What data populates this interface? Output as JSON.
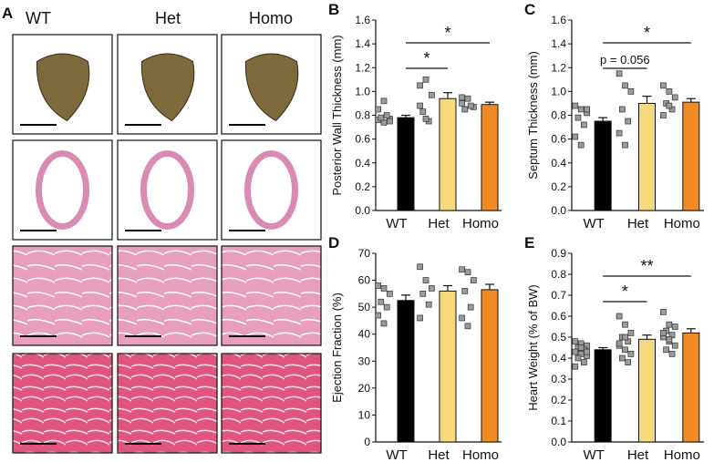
{
  "panel_a": {
    "label": "A",
    "columns": [
      "WT",
      "Het",
      "Homo"
    ]
  },
  "chart_data": [
    {
      "type": "bar",
      "label": "B",
      "ylabel": "Posterior Wall Thickness (mm)",
      "categories": [
        "WT",
        "Het",
        "Homo"
      ],
      "values": [
        0.78,
        0.94,
        0.89
      ],
      "errors": [
        0.02,
        0.05,
        0.02
      ],
      "colors": [
        "#000000",
        "#f5d97a",
        "#f28a24"
      ],
      "points": [
        [
          0.76,
          0.74,
          0.77,
          0.78,
          0.8,
          0.85,
          0.92,
          0.75
        ],
        [
          1.05,
          1.1,
          0.97,
          0.83,
          0.75,
          0.88,
          0.77
        ],
        [
          0.9,
          0.94,
          0.87,
          0.85,
          0.88,
          0.95
        ]
      ],
      "comparisons": [
        {
          "between": [
            0,
            1
          ],
          "label": "*"
        },
        {
          "between": [
            0,
            2
          ],
          "label": "*"
        }
      ],
      "ylim": [
        0,
        1.6
      ],
      "yticks": [
        {
          "value": 0,
          "label": "0.0"
        },
        0.2,
        0.4,
        0.6,
        0.8,
        {
          "value": 1,
          "label": "1.0"
        },
        1.2,
        1.4,
        1.6
      ]
    },
    {
      "type": "bar",
      "label": "C",
      "ylabel": "Septum Thickness (mm)",
      "categories": [
        "WT",
        "Het",
        "Homo"
      ],
      "values": [
        0.75,
        0.9,
        0.91
      ],
      "errors": [
        0.03,
        0.06,
        0.03
      ],
      "colors": [
        "#000000",
        "#f5d97a",
        "#f28a24"
      ],
      "points": [
        [
          0.88,
          0.85,
          0.82,
          0.78,
          0.72,
          0.62,
          0.55,
          0.85
        ],
        [
          1.15,
          1.05,
          1.0,
          0.85,
          0.75,
          0.65,
          0.55
        ],
        [
          1.05,
          1.0,
          0.95,
          0.9,
          0.85,
          0.8,
          0.88
        ]
      ],
      "comparisons": [
        {
          "between": [
            0,
            1
          ],
          "label": "p = 0.056"
        },
        {
          "between": [
            0,
            2
          ],
          "label": "*"
        }
      ],
      "ylim": [
        0,
        1.6
      ],
      "yticks": [
        {
          "value": 0,
          "label": "0.0"
        },
        0.2,
        0.4,
        0.6,
        0.8,
        {
          "value": 1,
          "label": "1.0"
        },
        1.2,
        1.4,
        1.6
      ]
    },
    {
      "type": "bar",
      "label": "D",
      "ylabel": "Ejection Fraction (%)",
      "categories": [
        "WT",
        "Het",
        "Homo"
      ],
      "values": [
        52.5,
        56,
        56.5
      ],
      "errors": [
        2,
        2,
        2
      ],
      "colors": [
        "#000000",
        "#f5d97a",
        "#f28a24"
      ],
      "points": [
        [
          58,
          57,
          55,
          52,
          50,
          47,
          44
        ],
        [
          65,
          60,
          57,
          55,
          51,
          46
        ],
        [
          64,
          63,
          60,
          56,
          50,
          46,
          43
        ]
      ],
      "comparisons": [],
      "ylim": [
        0,
        70
      ],
      "yticks": [
        0,
        10,
        20,
        30,
        40,
        50,
        60,
        70
      ]
    },
    {
      "type": "bar",
      "label": "E",
      "ylabel": "Heart Weight (% of BW)",
      "categories": [
        "WT",
        "Het",
        "Homo"
      ],
      "values": [
        0.44,
        0.49,
        0.52
      ],
      "errors": [
        0.01,
        0.02,
        0.02
      ],
      "colors": [
        "#000000",
        "#f5d97a",
        "#f28a24"
      ],
      "points": [
        [
          0.48,
          0.47,
          0.46,
          0.45,
          0.44,
          0.43,
          0.42,
          0.41,
          0.4,
          0.38,
          0.36,
          0.45,
          0.43
        ],
        [
          0.6,
          0.56,
          0.52,
          0.5,
          0.48,
          0.46,
          0.44,
          0.42,
          0.4,
          0.38,
          0.47,
          0.5
        ],
        [
          0.62,
          0.56,
          0.55,
          0.53,
          0.51,
          0.5,
          0.48,
          0.46,
          0.44,
          0.42,
          0.52,
          0.49
        ]
      ],
      "comparisons": [
        {
          "between": [
            0,
            1
          ],
          "label": "*"
        },
        {
          "between": [
            0,
            2
          ],
          "label": "**"
        }
      ],
      "ylim": [
        0,
        0.9
      ],
      "yticks": [
        {
          "value": 0,
          "label": "0.0"
        },
        0.1,
        0.2,
        0.3,
        0.4,
        0.5,
        0.6,
        0.7,
        0.8,
        0.9
      ]
    }
  ]
}
